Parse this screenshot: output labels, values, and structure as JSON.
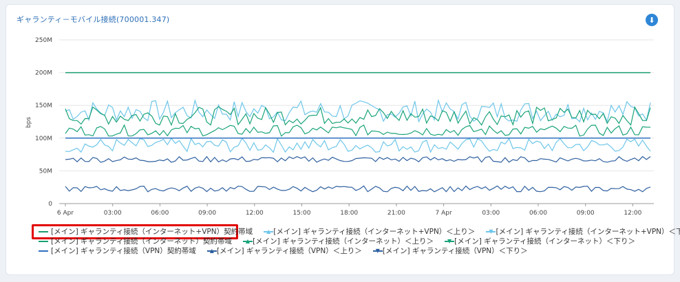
{
  "panel": {
    "title": "ギャランティ－モバイル接続(700001.347)",
    "download_icon": "download-icon"
  },
  "chart_data": {
    "type": "line",
    "title": "ギャランティ－モバイル接続(700001.347)",
    "ylabel": "bps",
    "ylim": [
      0,
      250000000
    ],
    "y_ticks": [
      "0",
      "50M",
      "100M",
      "150M",
      "200M",
      "250M"
    ],
    "x_ticks": [
      "6 Apr",
      "03:00",
      "06:00",
      "09:00",
      "12:00",
      "15:00",
      "18:00",
      "21:00",
      "7 Apr",
      "03:00",
      "06:00",
      "09:00",
      "12:00"
    ],
    "series": [
      {
        "name": "[メイン] ギャランティ接続（インターネット+VPN）契約帯域",
        "color": "#1a9c6e",
        "marker": "none",
        "constant": 200000000
      },
      {
        "name": "[メイン] ギャランティ接続（インターネット+VPN）＜上り＞",
        "color": "#6ec6ea",
        "marker": "up",
        "range": [
          125000000,
          158000000
        ]
      },
      {
        "name": "[メイン] ギャランティ接続（インターネット+VPN）＜下り＞",
        "color": "#6ec6ea",
        "marker": "down",
        "range": [
          78000000,
          100000000
        ]
      },
      {
        "name": "[メイン] ギャランティ接続（インターネット）契約帯域",
        "color": "#1a9c6e",
        "marker": "none",
        "constant": 100000000
      },
      {
        "name": "[メイン] ギャランティ接続（インターネット）＜上り＞",
        "color": "#1aa37a",
        "marker": "up",
        "range": [
          120000000,
          148000000
        ]
      },
      {
        "name": "[メイン] ギャランティ接続（インターネット）＜下り＞",
        "color": "#1aa37a",
        "marker": "down",
        "range": [
          103000000,
          120000000
        ]
      },
      {
        "name": "[メイン] ギャランティ接続（VPN）契約帯域",
        "color": "#2e6fbf",
        "marker": "none",
        "constant": 100000000
      },
      {
        "name": "[メイン] ギャランティ接続（VPN）＜上り＞",
        "color": "#2e5f9f",
        "marker": "up",
        "range": [
          63000000,
          72000000
        ]
      },
      {
        "name": "[メイン] ギャランティ接続（VPN）＜下り＞",
        "color": "#2e5f9f",
        "marker": "down",
        "range": [
          18000000,
          27000000
        ]
      }
    ]
  },
  "legend": {
    "rows": [
      [
        {
          "label": "[メイン] ギャランティ接続（インターネット+VPN）契約帯域",
          "color": "#1a9c6e",
          "icon": "line-icon"
        },
        {
          "label": "[メイン] ギャランティ接続（インターネット+VPN）＜上り＞",
          "color": "#6ec6ea",
          "icon": "up-triangle-icon"
        },
        {
          "label": "[メイン] ギャランティ接続（インターネット+VPN）＜下り＞",
          "color": "#6ec6ea",
          "icon": "down-triangle-icon"
        }
      ],
      [
        {
          "label": "[メイン] ギャランティ接続（インターネット）契約帯域",
          "color": "#1a9c6e",
          "icon": "line-icon"
        },
        {
          "label": "[メイン] ギャランティ接続（インターネット）＜上り＞",
          "color": "#1aa37a",
          "icon": "up-triangle-icon"
        },
        {
          "label": "[メイン] ギャランティ接続（インターネット）＜下り＞",
          "color": "#1aa37a",
          "icon": "down-triangle-icon"
        }
      ],
      [
        {
          "label": "[メイン] ギャランティ接続（VPN）契約帯域",
          "color": "#2e6fbf",
          "icon": "line-icon"
        },
        {
          "label": "[メイン] ギャランティ接続（VPN）＜上り＞",
          "color": "#2e5f9f",
          "icon": "up-triangle-icon"
        },
        {
          "label": "[メイン] ギャランティ接続（VPN）＜下り＞",
          "color": "#2e5f9f",
          "icon": "down-triangle-icon"
        }
      ]
    ],
    "highlight_color": "#e10000"
  }
}
